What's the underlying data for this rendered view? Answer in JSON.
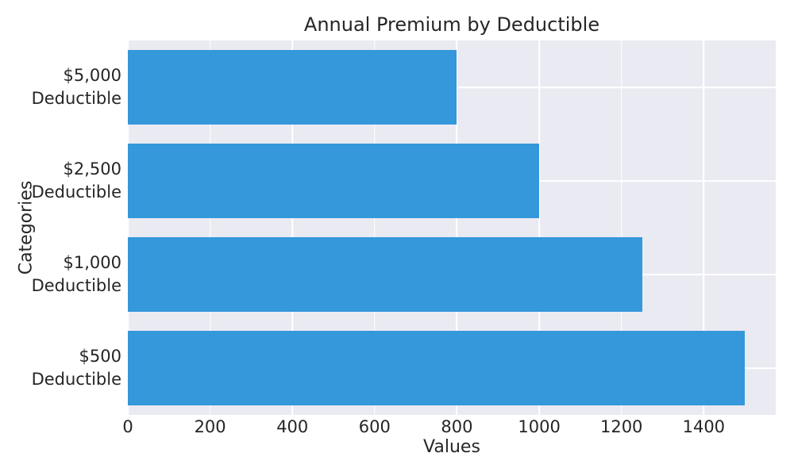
{
  "chart_data": {
    "type": "bar",
    "orientation": "horizontal",
    "title": "Annual Premium by Deductible",
    "xlabel": "Values",
    "ylabel": "Categories",
    "categories": [
      "$5,000\nDeductible",
      "$2,500\nDeductible",
      "$1,000\nDeductible",
      "$500\nDeductible"
    ],
    "values": [
      800,
      1000,
      1250,
      1500
    ],
    "xticks": [
      0,
      200,
      400,
      600,
      800,
      1000,
      1200,
      1400
    ],
    "xlim": [
      0,
      1575
    ],
    "grid": true,
    "legend_position": "none",
    "bar_color": "#3498db",
    "plot_background": "#eaeaf2",
    "grid_color": "#ffffff",
    "text_color": "#262626",
    "figure_background": "#ffffff",
    "bar_height_fraction": 0.8
  }
}
